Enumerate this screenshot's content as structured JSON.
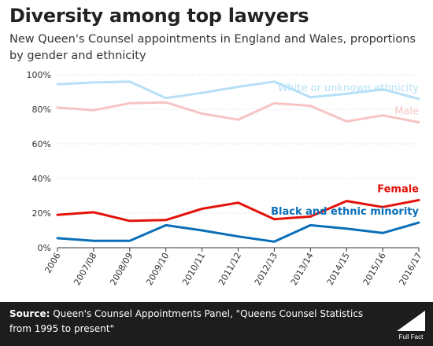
{
  "chart_data": {
    "type": "line",
    "title": "Diversity among top lawyers",
    "subtitle": "New Queen's Counsel appointments in England and Wales, proportions by gender and ethnicity",
    "x": [
      "2006",
      "2007/08",
      "2008/09",
      "2009/10",
      "2010/11",
      "2011/12",
      "2012/13",
      "2013/14",
      "2014/15",
      "2015/16",
      "2016/17"
    ],
    "ylim": [
      0,
      100
    ],
    "yticks": [
      "0%",
      "20%",
      "40%",
      "60%",
      "80%",
      "100%"
    ],
    "grid": true,
    "series": [
      {
        "name": "White or unknown ethnicity",
        "color": "#b7e0f7",
        "values": [
          94.5,
          95.5,
          96,
          86.5,
          89.5,
          93,
          96,
          87,
          89,
          91.5,
          86
        ]
      },
      {
        "name": "Male",
        "color": "#f6c4c4",
        "values": [
          81,
          79.5,
          83.5,
          84,
          77.5,
          74,
          83.5,
          82,
          73,
          76.5,
          72.5
        ]
      },
      {
        "name": "Female",
        "color": "#e3120b",
        "values": [
          19,
          20.5,
          15.5,
          16,
          22.5,
          26,
          16.5,
          18,
          27,
          23.5,
          27.5
        ]
      },
      {
        "name": "Black and ethnic minority",
        "color": "#0a6fb8",
        "values": [
          5.5,
          4,
          4,
          13,
          10,
          6.5,
          3.5,
          13,
          11,
          8.5,
          14.5
        ]
      }
    ]
  },
  "footer": {
    "source_label": "Source:",
    "source_text": " Queen's Counsel Appointments Panel, \"Queens Counsel Statistics from 1995 to present\"",
    "brand": "Full Fact"
  }
}
